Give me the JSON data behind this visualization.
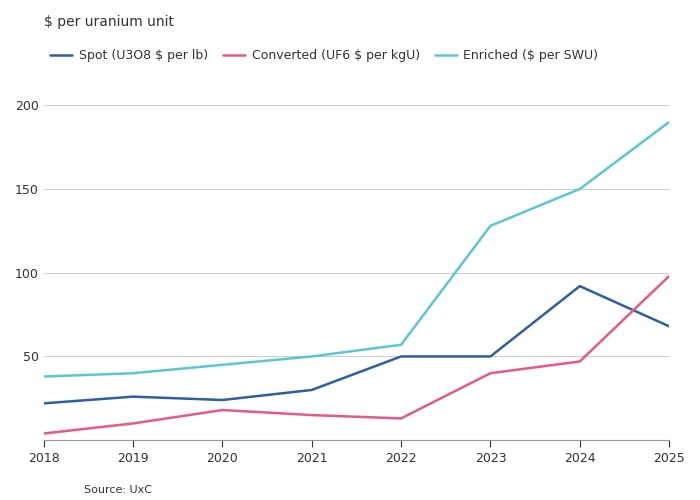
{
  "title": "$ per uranium unit",
  "source": "Source: UxC",
  "series": {
    "spot": {
      "label": "Spot (U3O8 $ per lb)",
      "color": "#2e5fa3",
      "x": [
        2018,
        2019,
        2020,
        2021,
        2022,
        2023,
        2024,
        2025
      ],
      "y": [
        22,
        26,
        24,
        30,
        50,
        50,
        92,
        68
      ]
    },
    "converted": {
      "label": "Converted (UF6 $ per kgU)",
      "color": "#e8588a",
      "x": [
        2018,
        2019,
        2020,
        2021,
        2022,
        2023,
        2024,
        2025
      ],
      "y": [
        4,
        10,
        18,
        15,
        13,
        40,
        47,
        98
      ]
    },
    "enriched": {
      "label": "Enriched ($ per SWU)",
      "color": "#5bc8d0",
      "x": [
        2018,
        2019,
        2020,
        2021,
        2022,
        2023,
        2024,
        2025
      ],
      "y": [
        38,
        40,
        45,
        50,
        57,
        128,
        150,
        190
      ]
    }
  },
  "ylim": [
    0,
    210
  ],
  "yticks": [
    50,
    100,
    150,
    200
  ],
  "xlim": [
    2018,
    2025
  ],
  "xticks": [
    2018,
    2019,
    2020,
    2021,
    2022,
    2023,
    2024,
    2025
  ],
  "background_color": "#ffffff",
  "plot_bg": "#ffffff",
  "grid_color": "#cccccc",
  "text_color": "#333333",
  "axis_color": "#999999",
  "linewidth": 1.8,
  "legend_fontsize": 9,
  "title_fontsize": 10,
  "tick_fontsize": 9
}
